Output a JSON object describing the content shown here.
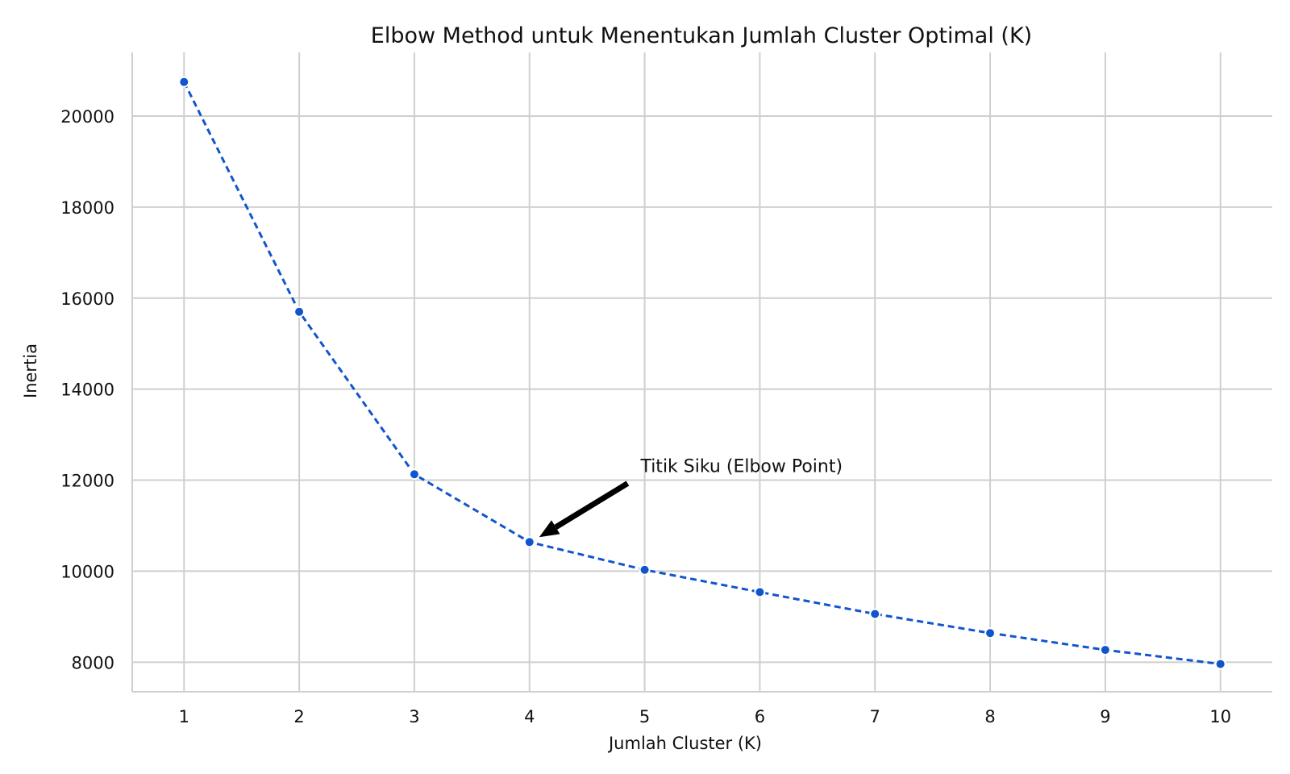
{
  "chart_data": {
    "type": "line",
    "title": "Elbow Method untuk Menentukan Jumlah Cluster Optimal (K)",
    "xlabel": "Jumlah Cluster (K)",
    "ylabel": "Inertia",
    "x": [
      1,
      2,
      3,
      4,
      5,
      6,
      7,
      8,
      9,
      10
    ],
    "series": [
      {
        "values": [
          20750,
          15700,
          12130,
          10640,
          10030,
          9540,
          9060,
          8640,
          8270,
          7960
        ],
        "color": "#1155cc",
        "line_style": "dashed",
        "marker": "circle"
      }
    ],
    "xlim": [
      0.55,
      10.45
    ],
    "ylim": [
      7350,
      21400
    ],
    "x_ticks": [
      "1",
      "2",
      "3",
      "4",
      "5",
      "6",
      "7",
      "8",
      "9",
      "10"
    ],
    "y_ticks": [
      "8000",
      "10000",
      "12000",
      "14000",
      "16000",
      "18000",
      "20000"
    ],
    "grid": true,
    "legend": "none",
    "annotations": [
      {
        "text": "Titik Siku (Elbow Point)",
        "x": 4,
        "y": 10640,
        "text_x": 4.95,
        "text_y": 12000,
        "arrow": true,
        "arrow_color": "#000000"
      }
    ],
    "colors": {
      "grid": "#cfcfcf",
      "axis": "#cfcfcf",
      "text": "#111111",
      "series": "#1155cc"
    }
  }
}
